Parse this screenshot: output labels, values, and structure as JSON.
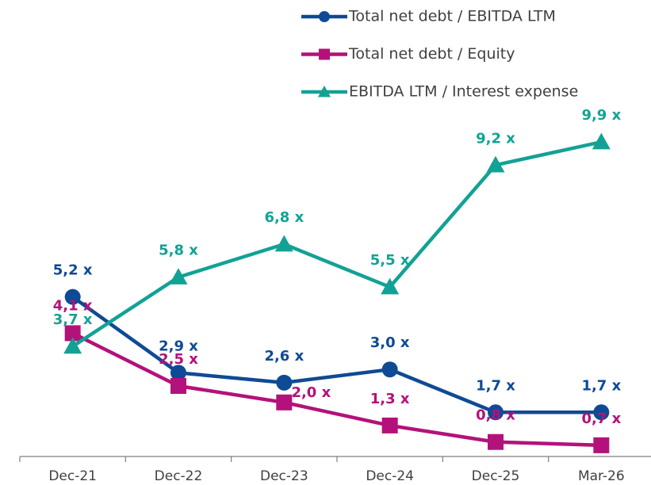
{
  "chart_data": {
    "type": "line",
    "categories": [
      "Dec-21",
      "Dec-22",
      "Dec-23",
      "Dec-24",
      "Dec-25",
      "Mar-26"
    ],
    "ylim": [
      0,
      10
    ],
    "series": [
      {
        "name": "Total net debt / EBITDA LTM",
        "color": "#0f4a94",
        "marker": "circle",
        "values": [
          5.2,
          2.9,
          2.6,
          3.0,
          1.7,
          1.7
        ],
        "value_labels": [
          "5,2 x",
          "2,9 x",
          "2,6 x",
          "3,0 x",
          "1,7 x",
          "1,7 x"
        ]
      },
      {
        "name": "Total net debt / Equity",
        "color": "#b3127a",
        "marker": "square",
        "values": [
          4.1,
          2.5,
          2.0,
          1.3,
          0.8,
          0.7
        ],
        "value_labels": [
          "4,1 x",
          "2,5 x",
          "2,0 x",
          "1,3 x",
          "0,8 x",
          "0,7 x"
        ]
      },
      {
        "name": "EBITDA LTM / Interest expense",
        "color": "#12a295",
        "marker": "triangle",
        "values": [
          3.7,
          5.8,
          6.8,
          5.5,
          9.2,
          9.9
        ],
        "value_labels": [
          "3,7 x",
          "5,8 x",
          "6,8 x",
          "5,5 x",
          "9,2 x",
          "9,9 x"
        ]
      }
    ]
  }
}
